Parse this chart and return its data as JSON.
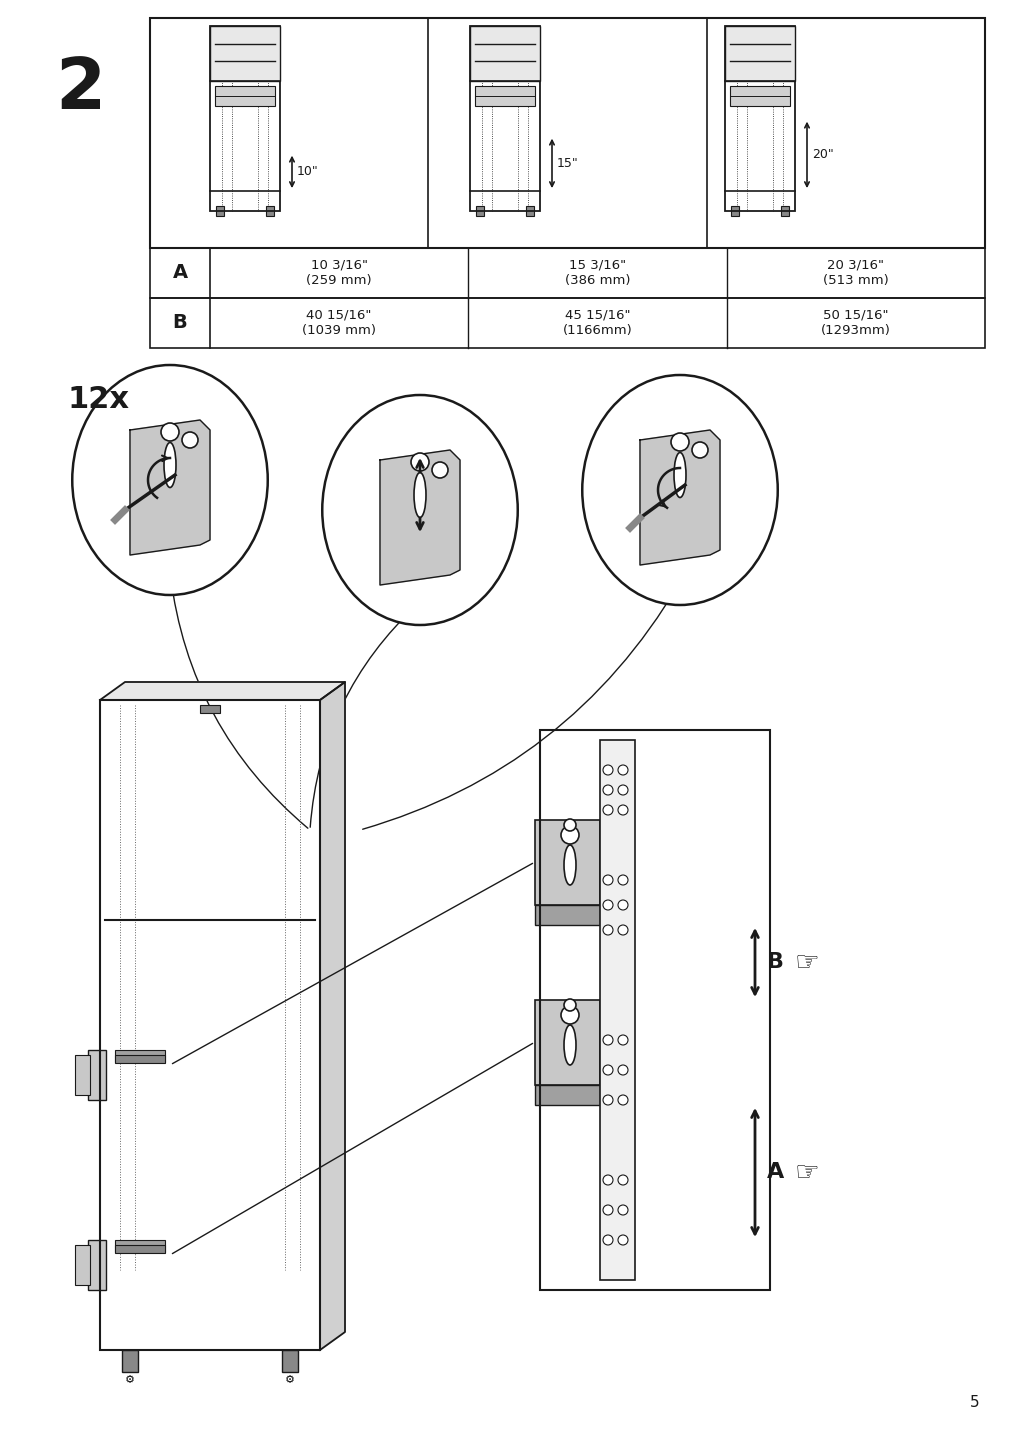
{
  "page_number": "5",
  "step_number": "2",
  "background_color": "#ffffff",
  "table": {
    "row_labels": [
      "A",
      "B"
    ],
    "col1": [
      "10 3/16\"\n(259 mm)",
      "40 15/16\"\n(1039 mm)"
    ],
    "col2": [
      "15 3/16\"\n(386 mm)",
      "45 15/16\"\n(1166mm)"
    ],
    "col3": [
      "20 3/16\"\n(513 mm)",
      "50 15/16\"\n(1293mm)"
    ],
    "measurements_top": [
      "10\"",
      "15\"",
      "20\""
    ]
  },
  "circle_label": "12x",
  "gray_color": "#c8c8c8",
  "dark_gray": "#808080",
  "light_gray": "#d8d8d8",
  "line_color": "#1a1a1a",
  "label_A": "A",
  "label_B": "B"
}
